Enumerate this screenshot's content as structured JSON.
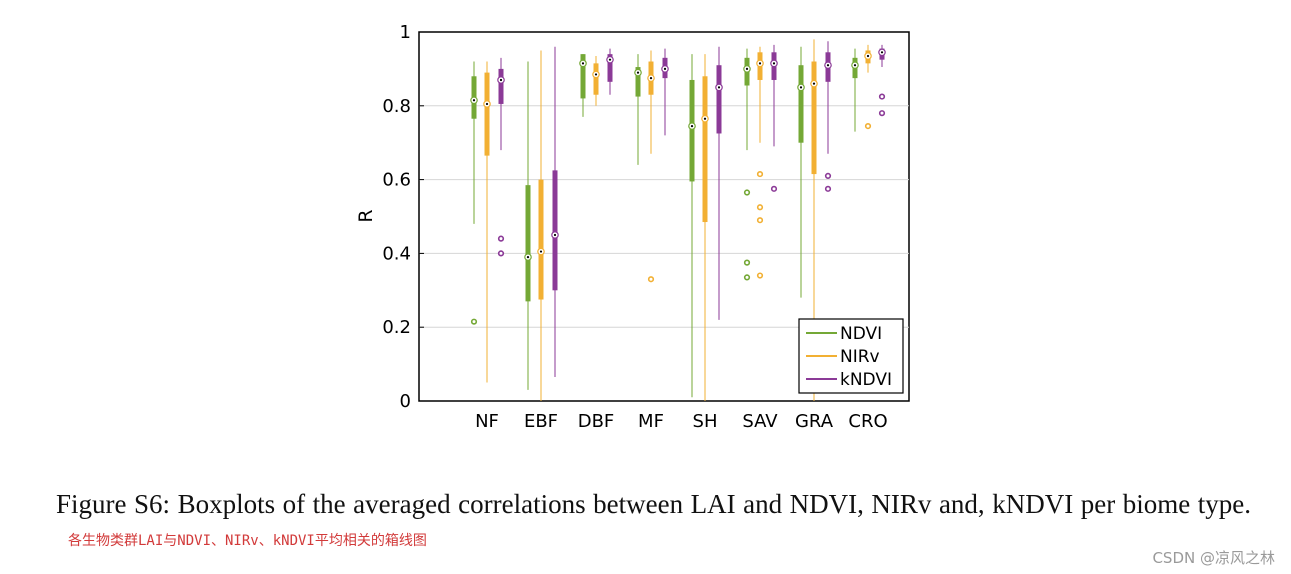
{
  "chart_data": {
    "type": "boxplot",
    "ylabel": "R",
    "xlabel": "",
    "ylim": [
      0,
      1
    ],
    "yticks": [
      0,
      0.2,
      0.4,
      0.6,
      0.8,
      1
    ],
    "ytick_labels": [
      "0",
      "0.2",
      "0.4",
      "0.6",
      "0.8",
      "1"
    ],
    "grid": true,
    "legend_position": "lower-right",
    "categories": [
      "NF",
      "EBF",
      "DBF",
      "MF",
      "SH",
      "SAV",
      "GRA",
      "CRO"
    ],
    "series": [
      {
        "name": "NDVI",
        "color": "#74a836",
        "boxes": [
          {
            "min": 0.48,
            "q1": 0.765,
            "median": 0.815,
            "q3": 0.88,
            "max": 0.92,
            "outliers": [
              0.215
            ]
          },
          {
            "min": 0.03,
            "q1": 0.27,
            "median": 0.39,
            "q3": 0.585,
            "max": 0.92,
            "outliers": []
          },
          {
            "min": 0.77,
            "q1": 0.82,
            "median": 0.915,
            "q3": 0.94,
            "max": 0.94,
            "outliers": []
          },
          {
            "min": 0.64,
            "q1": 0.825,
            "median": 0.89,
            "q3": 0.905,
            "max": 0.94,
            "outliers": []
          },
          {
            "min": 0.01,
            "q1": 0.595,
            "median": 0.745,
            "q3": 0.87,
            "max": 0.94,
            "outliers": []
          },
          {
            "min": 0.68,
            "q1": 0.855,
            "median": 0.9,
            "q3": 0.93,
            "max": 0.955,
            "outliers": [
              0.565,
              0.375,
              0.335
            ]
          },
          {
            "min": 0.28,
            "q1": 0.7,
            "median": 0.85,
            "q3": 0.91,
            "max": 0.96,
            "outliers": []
          },
          {
            "min": 0.73,
            "q1": 0.875,
            "median": 0.91,
            "q3": 0.93,
            "max": 0.955,
            "outliers": []
          }
        ]
      },
      {
        "name": "NIRv",
        "color": "#f2b033",
        "boxes": [
          {
            "min": 0.05,
            "q1": 0.665,
            "median": 0.805,
            "q3": 0.89,
            "max": 0.92,
            "outliers": []
          },
          {
            "min": 0.0,
            "q1": 0.275,
            "median": 0.405,
            "q3": 0.6,
            "max": 0.95,
            "outliers": []
          },
          {
            "min": 0.8,
            "q1": 0.83,
            "median": 0.885,
            "q3": 0.915,
            "max": 0.935,
            "outliers": []
          },
          {
            "min": 0.67,
            "q1": 0.83,
            "median": 0.875,
            "q3": 0.92,
            "max": 0.95,
            "outliers": [
              0.33
            ]
          },
          {
            "min": 0.0,
            "q1": 0.485,
            "median": 0.765,
            "q3": 0.88,
            "max": 0.94,
            "outliers": []
          },
          {
            "min": 0.7,
            "q1": 0.87,
            "median": 0.915,
            "q3": 0.945,
            "max": 0.96,
            "outliers": [
              0.615,
              0.525,
              0.49,
              0.34
            ]
          },
          {
            "min": 0.0,
            "q1": 0.615,
            "median": 0.86,
            "q3": 0.92,
            "max": 0.98,
            "outliers": []
          },
          {
            "min": 0.89,
            "q1": 0.915,
            "median": 0.935,
            "q3": 0.95,
            "max": 0.965,
            "outliers": [
              0.745
            ]
          }
        ]
      },
      {
        "name": "kNDVI",
        "color": "#8b3a97",
        "boxes": [
          {
            "min": 0.68,
            "q1": 0.805,
            "median": 0.87,
            "q3": 0.9,
            "max": 0.93,
            "outliers": [
              0.44,
              0.4
            ]
          },
          {
            "min": 0.065,
            "q1": 0.3,
            "median": 0.45,
            "q3": 0.625,
            "max": 0.96,
            "outliers": []
          },
          {
            "min": 0.83,
            "q1": 0.865,
            "median": 0.925,
            "q3": 0.94,
            "max": 0.955,
            "outliers": []
          },
          {
            "min": 0.72,
            "q1": 0.875,
            "median": 0.9,
            "q3": 0.93,
            "max": 0.955,
            "outliers": []
          },
          {
            "min": 0.22,
            "q1": 0.725,
            "median": 0.85,
            "q3": 0.91,
            "max": 0.96,
            "outliers": []
          },
          {
            "min": 0.69,
            "q1": 0.87,
            "median": 0.915,
            "q3": 0.945,
            "max": 0.965,
            "outliers": [
              0.575
            ]
          },
          {
            "min": 0.67,
            "q1": 0.865,
            "median": 0.91,
            "q3": 0.945,
            "max": 0.975,
            "outliers": [
              0.61,
              0.575
            ]
          },
          {
            "min": 0.905,
            "q1": 0.925,
            "median": 0.945,
            "q3": 0.955,
            "max": 0.965,
            "outliers": [
              0.825,
              0.78
            ]
          }
        ]
      }
    ]
  },
  "caption": {
    "text": "Figure S6: Boxplots of the averaged correlations between LAI and NDVI, NIRv and, kNDVI per biome type.",
    "note": "各生物类群LAI与NDVI、NIRv、kNDVI平均相关的箱线图"
  },
  "watermark": "CSDN @凉风之林"
}
